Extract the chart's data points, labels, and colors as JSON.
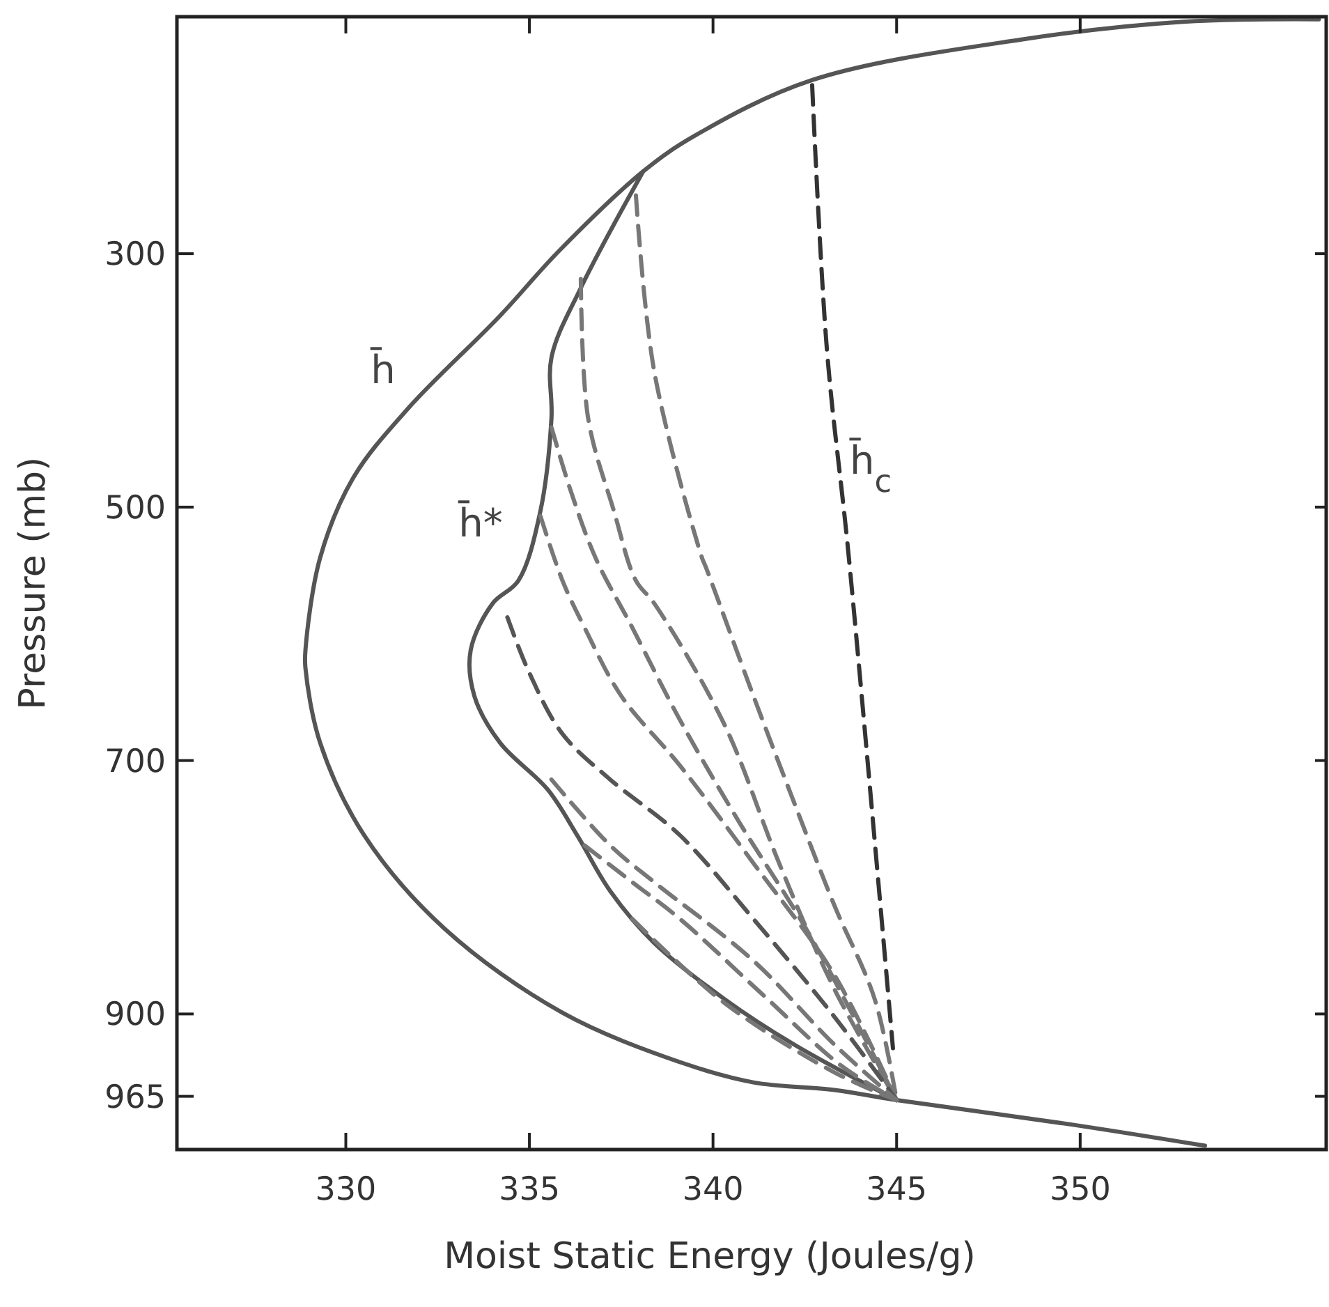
{
  "chart_data": {
    "type": "line",
    "xlabel": "Moist Static Energy (Joules/g)",
    "ylabel": "Pressure (mb)",
    "xlim": [
      325.4,
      356.7
    ],
    "ylim": [
      1007,
      113
    ],
    "xticks": [
      330,
      335,
      340,
      345,
      350
    ],
    "yticks": [
      300,
      500,
      700,
      900,
      965
    ],
    "grid": false,
    "marker": "none",
    "series": [
      {
        "color": "#555555",
        "line_style": "solid",
        "x": [
          353.4,
          349.7,
          345,
          343.3,
          341.1,
          339.1,
          335.9,
          332.7,
          330.5,
          329.3,
          328.9,
          328.9,
          329.3,
          330.2,
          331.7,
          334.2,
          335.8,
          338.1,
          339.5,
          342.7,
          348.4,
          352.8,
          356.5
        ],
        "values": [
          1004,
          987,
          968,
          960,
          954,
          938,
          899,
          833,
          759,
          686,
          627,
          613,
          540,
          477,
          422,
          349,
          298,
          235,
          207,
          163,
          131,
          117,
          115
        ]
      },
      {
        "color": "#555555",
        "line_style": "solid",
        "x": [
          338.1,
          336.4,
          335.6,
          335.6,
          335.3,
          334.7,
          334.0,
          333.4,
          333.5,
          334.2,
          335.5,
          336.3,
          337.2,
          338.4,
          340.3,
          342.2,
          345
        ],
        "values": [
          235,
          327,
          382,
          430,
          503,
          558,
          576,
          613,
          649,
          686,
          723,
          759,
          803,
          844,
          888,
          924,
          968
        ]
      },
      {
        "color": "#333333",
        "line_style": "dashed",
        "x": [
          342.7,
          343.1,
          343.7,
          344.9
        ],
        "values": [
          167,
          375,
          540,
          927
        ]
      },
      {
        "color": "#777777",
        "line_style": "dashed",
        "x": [
          337.9,
          338.4,
          339.7,
          339.8,
          341.1,
          342.3,
          343.3,
          344.4,
          345
        ],
        "values": [
          254,
          393,
          540,
          547,
          649,
          740,
          814,
          888,
          968
        ]
      },
      {
        "color": "#777777",
        "line_style": "dashed",
        "x": [
          336.4,
          336.6,
          337.3,
          337.9,
          338.4,
          340.3,
          341.8,
          343.3,
          345
        ],
        "values": [
          320,
          430,
          503,
          558,
          576,
          671,
          781,
          880,
          968
        ]
      },
      {
        "color": "#777777",
        "line_style": "dashed",
        "x": [
          335.6,
          336.1,
          336.8,
          337.8,
          339.1,
          340.7,
          342.6,
          345
        ],
        "values": [
          437,
          485,
          540,
          595,
          668,
          748,
          836,
          968
        ]
      },
      {
        "color": "#777777",
        "line_style": "dashed",
        "x": [
          335.3,
          335.9,
          336.5,
          337.5,
          339.1,
          341.1,
          343.3,
          345
        ],
        "values": [
          507,
          558,
          595,
          649,
          704,
          781,
          869,
          968
        ]
      },
      {
        "color": "#555555",
        "line_style": "dashed",
        "x": [
          334.4,
          335.0,
          335.9,
          337.2,
          339.1,
          341.1,
          343.3,
          345
        ],
        "values": [
          587,
          631,
          679,
          715,
          759,
          825,
          902,
          968
        ]
      },
      {
        "color": "#777777",
        "line_style": "dashed",
        "x": [
          335.6,
          337.2,
          338.4,
          341.1,
          343.3,
          345
        ],
        "values": [
          715,
          767,
          796,
          858,
          924,
          968
        ]
      },
      {
        "color": "#777777",
        "line_style": "dashed",
        "x": [
          336.5,
          337.8,
          339.1,
          341.4,
          343.5,
          345
        ],
        "values": [
          767,
          796,
          825,
          886,
          941,
          968
        ]
      },
      {
        "color": "#777777",
        "line_style": "dashed",
        "x": [
          337.8,
          340.3,
          343.3,
          345
        ],
        "values": [
          825,
          891,
          946,
          968
        ]
      }
    ],
    "annotations": [
      "h̄",
      "h̄*",
      "h̄$_{c}$"
    ]
  }
}
